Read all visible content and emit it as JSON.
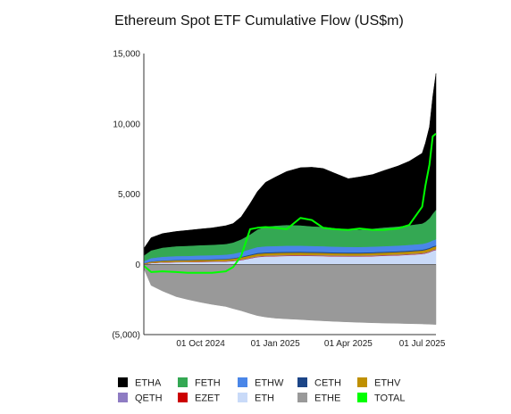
{
  "chart_data": {
    "type": "area",
    "title": "Ethereum Spot ETF Cumulative Flow (US$m)",
    "xlabel": "",
    "ylabel": "",
    "x_range": [
      "2024-07-23",
      "2025-07-18"
    ],
    "ylim": [
      -5000,
      15000
    ],
    "y_ticks": [
      15000,
      10000,
      5000,
      0,
      -5000
    ],
    "y_tick_labels": [
      "15,000",
      "10,000",
      "5,000",
      "0",
      "(5,000)"
    ],
    "x_ticks": [
      "2024-10-01",
      "2025-01-01",
      "2025-04-01",
      "2025-07-01"
    ],
    "x_tick_labels": [
      "01 Oct 2024",
      "01 Jan 2025",
      "01 Apr 2025",
      "01 Jul 2025"
    ],
    "grid": false,
    "legend_position": "bottom",
    "dates": [
      "2024-07-23",
      "2024-08-01",
      "2024-08-15",
      "2024-09-01",
      "2024-09-15",
      "2024-10-01",
      "2024-10-15",
      "2024-11-01",
      "2024-11-10",
      "2024-11-20",
      "2024-12-01",
      "2024-12-10",
      "2024-12-20",
      "2025-01-01",
      "2025-01-15",
      "2025-02-01",
      "2025-02-15",
      "2025-03-01",
      "2025-03-15",
      "2025-04-01",
      "2025-04-15",
      "2025-05-01",
      "2025-05-15",
      "2025-06-01",
      "2025-06-15",
      "2025-07-01",
      "2025-07-05",
      "2025-07-10",
      "2025-07-14",
      "2025-07-18"
    ],
    "series": [
      {
        "name": "ETH",
        "color": "#c9daf8",
        "values": [
          0,
          90,
          130,
          150,
          160,
          170,
          180,
          200,
          230,
          300,
          420,
          520,
          560,
          580,
          600,
          610,
          600,
          590,
          570,
          560,
          560,
          580,
          610,
          640,
          680,
          740,
          780,
          860,
          960,
          1020
        ]
      },
      {
        "name": "EZET",
        "color": "#cc0000",
        "values": [
          5,
          8,
          10,
          10,
          10,
          12,
          12,
          14,
          15,
          18,
          20,
          22,
          22,
          22,
          22,
          22,
          22,
          22,
          22,
          22,
          22,
          22,
          22,
          22,
          22,
          22,
          22,
          22,
          22,
          22
        ]
      },
      {
        "name": "QETH",
        "color": "#8e7cc3",
        "values": [
          10,
          15,
          20,
          20,
          20,
          25,
          25,
          25,
          28,
          30,
          35,
          38,
          38,
          38,
          38,
          38,
          38,
          38,
          38,
          38,
          38,
          38,
          38,
          38,
          38,
          40,
          40,
          40,
          40,
          40
        ]
      },
      {
        "name": "ETHV",
        "color": "#bf9000",
        "values": [
          50,
          80,
          90,
          100,
          100,
          110,
          110,
          120,
          130,
          140,
          155,
          165,
          170,
          170,
          170,
          168,
          165,
          162,
          160,
          160,
          160,
          162,
          165,
          170,
          175,
          180,
          185,
          190,
          195,
          200
        ]
      },
      {
        "name": "CETH",
        "color": "#1c4587",
        "values": [
          10,
          20,
          30,
          30,
          30,
          35,
          35,
          35,
          40,
          50,
          60,
          65,
          65,
          65,
          65,
          65,
          65,
          65,
          65,
          65,
          65,
          65,
          65,
          65,
          65,
          65,
          65,
          65,
          65,
          65
        ]
      },
      {
        "name": "ETHW",
        "color": "#4a86e8",
        "values": [
          150,
          230,
          260,
          280,
          280,
          285,
          290,
          295,
          310,
          340,
          390,
          420,
          430,
          430,
          430,
          425,
          420,
          415,
          405,
          400,
          395,
          395,
          395,
          400,
          405,
          410,
          415,
          420,
          425,
          430
        ]
      },
      {
        "name": "FETH",
        "color": "#34a853",
        "values": [
          400,
          550,
          650,
          700,
          720,
          730,
          740,
          760,
          800,
          900,
          1050,
          1250,
          1400,
          1450,
          1480,
          1450,
          1400,
          1380,
          1330,
          1250,
          1230,
          1280,
          1330,
          1360,
          1400,
          1450,
          1520,
          1680,
          1900,
          2100
        ]
      },
      {
        "name": "ETHA",
        "color": "#000000",
        "values": [
          500,
          900,
          1000,
          1050,
          1100,
          1150,
          1200,
          1300,
          1350,
          1600,
          2200,
          2700,
          3150,
          3450,
          3800,
          4100,
          4200,
          4150,
          3900,
          3600,
          3750,
          3850,
          4050,
          4300,
          4550,
          5000,
          5600,
          6500,
          8300,
          9700
        ]
      },
      {
        "name": "ETHE",
        "color": "#999999",
        "values": [
          -300,
          -1500,
          -1900,
          -2300,
          -2500,
          -2700,
          -2850,
          -3000,
          -3150,
          -3300,
          -3500,
          -3650,
          -3750,
          -3830,
          -3880,
          -3930,
          -3980,
          -4020,
          -4060,
          -4100,
          -4130,
          -4160,
          -4180,
          -4200,
          -4220,
          -4240,
          -4250,
          -4260,
          -4270,
          -4280
        ]
      },
      {
        "name": "TOTAL",
        "color": "#00ff00",
        "values": [
          -100,
          -550,
          -500,
          -550,
          -600,
          -600,
          -600,
          -500,
          -200,
          600,
          2500,
          2600,
          2650,
          2600,
          2500,
          3300,
          3150,
          2600,
          2500,
          2450,
          2550,
          2450,
          2450,
          2550,
          2800,
          4100,
          5600,
          7100,
          9100,
          9300
        ]
      }
    ]
  }
}
